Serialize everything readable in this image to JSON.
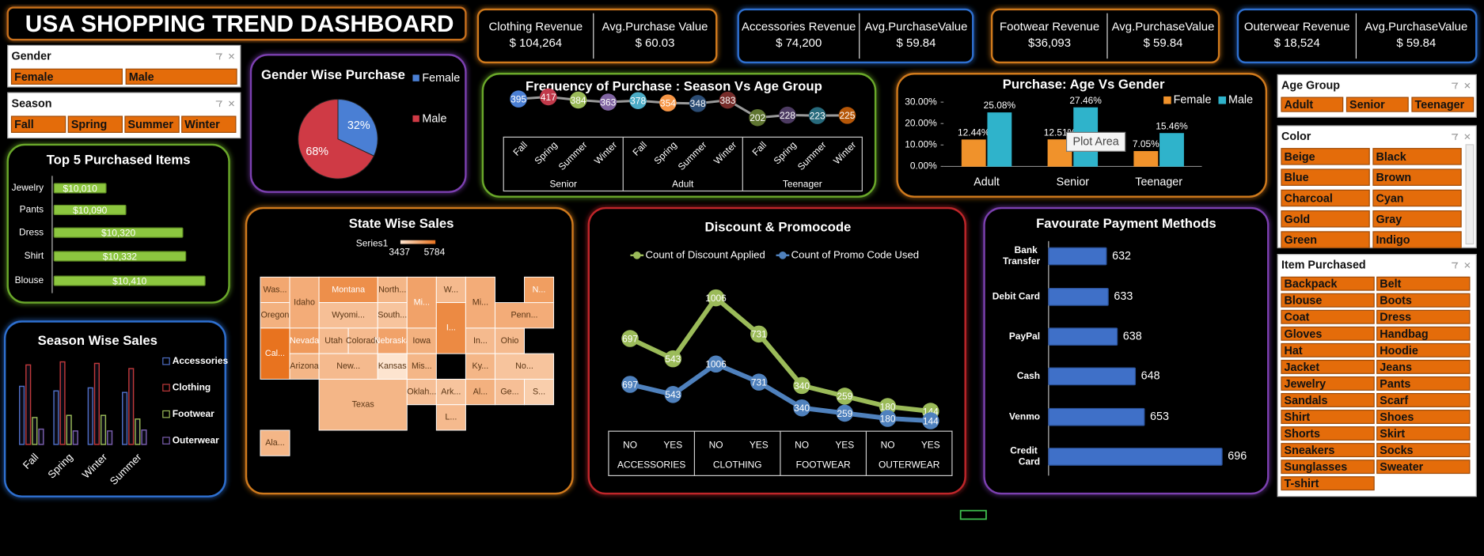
{
  "title": "USA SHOPPING TREND DASHBOARD",
  "kpis": [
    {
      "label": "Clothing Revenue",
      "value": "$ 104,264",
      "avg_label": "Avg.Purchase Value",
      "avg_value": "$ 60.03"
    },
    {
      "label": "Accessories Revenue",
      "value": "$ 74,200",
      "avg_label": "Avg.PurchaseValue",
      "avg_value": "$ 59.84"
    },
    {
      "label": "Footwear Revenue",
      "value": "$36,093",
      "avg_label": "Avg.PurchaseValue",
      "avg_value": "$ 59.84"
    },
    {
      "label": "Outerwear Revenue",
      "value": "$ 18,524",
      "avg_label": "Avg.PurchaseValue",
      "avg_value": "$ 59.84"
    }
  ],
  "slicers": [
    {
      "title": "Gender",
      "items": [
        "Female",
        "Male"
      ]
    },
    {
      "title": "Season",
      "items": [
        "Fall",
        "Spring",
        "Summer",
        "Winter"
      ]
    },
    {
      "title": "Age Group",
      "items": [
        "Adult",
        "Senior",
        "Teenager"
      ]
    },
    {
      "title": "Color",
      "items": [
        "Beige",
        "Black",
        "Blue",
        "Brown",
        "Charcoal",
        "Cyan",
        "Gold",
        "Gray",
        "Green",
        "Indigo"
      ]
    },
    {
      "title": "Item Purchased",
      "items": [
        "Backpack",
        "Belt",
        "Blouse",
        "Boots",
        "Coat",
        "Dress",
        "Gloves",
        "Handbag",
        "Hat",
        "Hoodie",
        "Jacket",
        "Jeans",
        "Jewelry",
        "Pants",
        "Sandals",
        "Scarf",
        "Shirt",
        "Shoes",
        "Shorts",
        "Skirt",
        "Sneakers",
        "Socks",
        "Sunglasses",
        "Sweater",
        "T-shirt"
      ]
    }
  ],
  "chart_data": [
    {
      "type": "pie",
      "title": "Gender Wise Purchase",
      "categories": [
        "Female",
        "Male"
      ],
      "values": [
        32,
        68
      ],
      "value_labels": [
        "32%",
        "68%"
      ],
      "colors": [
        "#4a7fd4",
        "#cf3a45"
      ]
    },
    {
      "type": "bar",
      "orientation": "horizontal",
      "title": "Top 5 Purchased Items",
      "categories": [
        "Jewelry",
        "Pants",
        "Dress",
        "Shirt",
        "Blouse"
      ],
      "values": [
        10010,
        10090,
        10320,
        10332,
        10410
      ],
      "value_labels": [
        "$10,010",
        "$10,090",
        "$10,320",
        "$10,332",
        "$10,410"
      ],
      "xlim": [
        9800,
        10450
      ],
      "color": "#8cc63f"
    },
    {
      "type": "bar",
      "title": "Season Wise Sales",
      "categories": [
        "Fall",
        "Spring",
        "Winter",
        "Summer"
      ],
      "series": [
        {
          "name": "Accessories",
          "color": "#4f6fc6",
          "values": [
            19000,
            17500,
            18500,
            17000
          ]
        },
        {
          "name": "Clothing",
          "color": "#c0393b",
          "values": [
            26000,
            27000,
            26500,
            24800
          ]
        },
        {
          "name": "Footwear",
          "color": "#9bbb59",
          "values": [
            8800,
            9500,
            9500,
            8300
          ]
        },
        {
          "name": "Outerwear",
          "color": "#7b5fb0",
          "values": [
            5000,
            4400,
            4400,
            4700
          ]
        }
      ],
      "ylim": [
        0,
        30000
      ]
    },
    {
      "type": "line",
      "title": "Frequency of Purchase : Season Vs Age Group",
      "groups": [
        "Senior",
        "Adult",
        "Teenager"
      ],
      "categories": [
        "Fall",
        "Spring",
        "Summer",
        "Winter",
        "Fall",
        "Spring",
        "Summer",
        "Winter",
        "Fall",
        "Spring",
        "Summer",
        "Winter"
      ],
      "values": [
        395,
        417,
        384,
        363,
        378,
        354,
        348,
        383,
        202,
        228,
        223,
        225
      ],
      "point_colors": [
        "#4a7fd4",
        "#c0394a",
        "#9bbb59",
        "#8064a2",
        "#4bacc6",
        "#f79646",
        "#2c4d75",
        "#772c2a",
        "#5f7530",
        "#4d3b62",
        "#276a7c",
        "#b65708"
      ],
      "ylim": [
        0,
        480
      ]
    },
    {
      "type": "bar",
      "title": "Purchase: Age Vs Gender",
      "categories": [
        "Adult",
        "Senior",
        "Teenager"
      ],
      "series": [
        {
          "name": "Female",
          "color": "#f0922b",
          "values": [
            12.44,
            12.51,
            7.05
          ],
          "value_labels": [
            "12.44%",
            "12.51%",
            "7.05%"
          ]
        },
        {
          "name": "Male",
          "color": "#2fb3cb",
          "values": [
            25.08,
            27.46,
            15.46
          ],
          "value_labels": [
            "25.08%",
            "27.46%",
            "15.46%"
          ]
        }
      ],
      "ylim": [
        0,
        30
      ],
      "yticks": [
        {
          "value": 0,
          "label": "0.00%"
        },
        {
          "value": 10,
          "label": "10.00%"
        },
        {
          "value": 20,
          "label": "20.00%"
        },
        {
          "value": 30,
          "label": "30.00%"
        }
      ],
      "tooltip": "Plot Area"
    },
    {
      "type": "map",
      "title": "State Wise Sales",
      "legend_title": "Series1",
      "legend_min": 3437,
      "legend_max": 5784,
      "colors": [
        "#fde4cf",
        "#e8731f"
      ],
      "regions": [
        {
          "label": "Was...",
          "value": 4700
        },
        {
          "label": "Oregon",
          "value": 4500
        },
        {
          "label": "Cal...",
          "value": 5784
        },
        {
          "label": "Idaho",
          "value": 4600
        },
        {
          "label": "Nevada",
          "value": 5000
        },
        {
          "label": "Arizona",
          "value": 4400
        },
        {
          "label": "Montana",
          "value": 5200
        },
        {
          "label": "Wyomi...",
          "value": 4200
        },
        {
          "label": "Utah",
          "value": 4300
        },
        {
          "label": "Colorado",
          "value": 4300
        },
        {
          "label": "New...",
          "value": 4300
        },
        {
          "label": "Texas",
          "value": 4400
        },
        {
          "label": "North...",
          "value": 4400
        },
        {
          "label": "South...",
          "value": 4100
        },
        {
          "label": "Nebraska",
          "value": 4800
        },
        {
          "label": "Kansas",
          "value": 3437
        },
        {
          "label": "Oklah...",
          "value": 4200
        },
        {
          "label": "Mi...",
          "value": 4800
        },
        {
          "label": "Iowa",
          "value": 4500
        },
        {
          "label": "Mis...",
          "value": 4400
        },
        {
          "label": "W...",
          "value": 4300
        },
        {
          "label": "I...",
          "value": 5300
        },
        {
          "label": "Ark...",
          "value": 4100
        },
        {
          "label": "L...",
          "value": 4300
        },
        {
          "label": "Mi...",
          "value": 4600
        },
        {
          "label": "In...",
          "value": 4300
        },
        {
          "label": "Ky...",
          "value": 4400
        },
        {
          "label": "Al...",
          "value": 4500
        },
        {
          "label": "Ohio",
          "value": 4300
        },
        {
          "label": "No...",
          "value": 4100
        },
        {
          "label": "Ge...",
          "value": 4200
        },
        {
          "label": "Penn...",
          "value": 4600
        },
        {
          "label": "N...",
          "value": 4900
        },
        {
          "label": "S...",
          "value": 3900
        },
        {
          "label": "Ala...",
          "value": 4400
        }
      ]
    },
    {
      "type": "line",
      "title": "Discount & Promocode",
      "groups": [
        "ACCESSORIES",
        "CLOTHING",
        "FOOTWEAR",
        "OUTERWEAR"
      ],
      "categories": [
        "NO",
        "YES",
        "NO",
        "YES",
        "NO",
        "YES",
        "NO",
        "YES"
      ],
      "series": [
        {
          "name": "Count of Discount Applied",
          "color": "#9bbb59",
          "axis": "y2",
          "values": [
            697,
            543,
            1006,
            731,
            340,
            259,
            180,
            144
          ]
        },
        {
          "name": "Count of Promo Code Used",
          "color": "#4f81bd",
          "values": [
            697,
            543,
            1006,
            731,
            340,
            259,
            180,
            144
          ]
        }
      ],
      "ylim": [
        0,
        2400
      ],
      "y2lim": [
        0,
        1200
      ]
    },
    {
      "type": "bar",
      "orientation": "horizontal",
      "title": "Favourate Payment Methods",
      "categories": [
        "Bank Transfer",
        "Debit Card",
        "PayPal",
        "Cash",
        "Venmo",
        "Credit Card"
      ],
      "values": [
        632,
        633,
        638,
        648,
        653,
        696
      ],
      "xlim": [
        600,
        700
      ],
      "color": "#3f70c8"
    }
  ]
}
